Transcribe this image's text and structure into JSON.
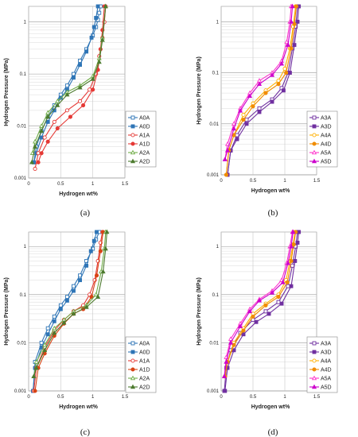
{
  "chart_data": [
    {
      "panel_label": "(a)",
      "type": "line",
      "xlabel": "Hydrogen wt%",
      "ylabel": "Hydrogen Pressure  (MPa)",
      "xlim": [
        0,
        1.5
      ],
      "ylim": [
        0.001,
        2
      ],
      "yscale": "log",
      "x_ticks": [
        "0",
        "0.5",
        "1",
        "1.5"
      ],
      "y_ticks": [
        "0.001",
        "0.01",
        "0.1",
        "1"
      ],
      "grid": true,
      "legend_position": "right-middle",
      "series": [
        {
          "name": "A0A",
          "color": "#2e75b6",
          "marker": "square-open",
          "x": [
            0.08,
            0.12,
            0.2,
            0.3,
            0.4,
            0.5,
            0.6,
            0.7,
            0.8,
            0.9,
            1.0,
            1.05,
            1.08,
            1.1,
            1.12
          ],
          "y": [
            0.002,
            0.004,
            0.008,
            0.015,
            0.025,
            0.04,
            0.06,
            0.1,
            0.18,
            0.3,
            0.55,
            0.8,
            1.1,
            1.5,
            2.0
          ]
        },
        {
          "name": "A0D",
          "color": "#2e75b6",
          "marker": "square-filled",
          "x": [
            0.08,
            0.12,
            0.2,
            0.3,
            0.4,
            0.5,
            0.6,
            0.7,
            0.8,
            0.9,
            0.98,
            1.02,
            1.05,
            1.08
          ],
          "y": [
            0.002,
            0.003,
            0.006,
            0.012,
            0.02,
            0.035,
            0.05,
            0.085,
            0.15,
            0.27,
            0.5,
            0.8,
            1.2,
            2.0
          ]
        },
        {
          "name": "A1A",
          "color": "#e53935",
          "marker": "circle-open",
          "x": [
            0.1,
            0.15,
            0.25,
            0.4,
            0.6,
            0.8,
            0.95,
            1.05,
            1.1,
            1.15,
            1.18,
            1.2
          ],
          "y": [
            0.0015,
            0.003,
            0.006,
            0.012,
            0.02,
            0.03,
            0.05,
            0.1,
            0.22,
            0.5,
            1.0,
            2.0
          ]
        },
        {
          "name": "A1D",
          "color": "#e53935",
          "marker": "circle-filled",
          "x": [
            0.15,
            0.2,
            0.3,
            0.45,
            0.65,
            0.85,
            1.0,
            1.08,
            1.12,
            1.15,
            1.18
          ],
          "y": [
            0.002,
            0.003,
            0.005,
            0.009,
            0.015,
            0.025,
            0.05,
            0.12,
            0.3,
            0.7,
            2.0
          ]
        },
        {
          "name": "A2A",
          "color": "#70ad47",
          "marker": "triangle-open",
          "x": [
            0.06,
            0.1,
            0.2,
            0.3,
            0.45,
            0.6,
            0.8,
            1.0,
            1.1,
            1.15,
            1.2
          ],
          "y": [
            0.003,
            0.005,
            0.01,
            0.018,
            0.03,
            0.045,
            0.06,
            0.09,
            0.2,
            0.5,
            2.0
          ]
        },
        {
          "name": "A2D",
          "color": "#4c7a2e",
          "marker": "triangle-filled",
          "x": [
            0.05,
            0.1,
            0.2,
            0.3,
            0.45,
            0.6,
            0.8,
            1.0,
            1.1,
            1.15,
            1.2
          ],
          "y": [
            0.002,
            0.004,
            0.008,
            0.015,
            0.025,
            0.04,
            0.055,
            0.08,
            0.17,
            0.45,
            2.0
          ]
        }
      ]
    },
    {
      "panel_label": "(b)",
      "type": "line",
      "xlabel": "Hydrogen wt%",
      "ylabel": "Hydrogen Pressure  (MPa)",
      "xlim": [
        0,
        1.5
      ],
      "ylim": [
        0.001,
        2
      ],
      "yscale": "log",
      "x_ticks": [
        "0",
        "0.5",
        "1",
        "1.5"
      ],
      "y_ticks": [
        "0.001",
        "0.01",
        "0.1",
        "1"
      ],
      "grid": true,
      "legend_position": "right-middle",
      "series": [
        {
          "name": "A3A",
          "color": "#7030a0",
          "marker": "square-open",
          "x": [
            0.1,
            0.15,
            0.25,
            0.4,
            0.6,
            0.8,
            0.95,
            1.05,
            1.12,
            1.17,
            1.2
          ],
          "y": [
            0.001,
            0.003,
            0.006,
            0.012,
            0.02,
            0.03,
            0.05,
            0.1,
            0.3,
            0.8,
            2.0
          ]
        },
        {
          "name": "A3D",
          "color": "#7030a0",
          "marker": "square-filled",
          "x": [
            0.1,
            0.15,
            0.25,
            0.4,
            0.6,
            0.8,
            0.98,
            1.08,
            1.15,
            1.2,
            1.22
          ],
          "y": [
            0.001,
            0.003,
            0.005,
            0.01,
            0.017,
            0.027,
            0.045,
            0.1,
            0.35,
            1.0,
            2.0
          ]
        },
        {
          "name": "A4A",
          "color": "#ffb000",
          "marker": "circle-open",
          "x": [
            0.08,
            0.12,
            0.2,
            0.35,
            0.5,
            0.7,
            0.9,
            1.0,
            1.08,
            1.13,
            1.17
          ],
          "y": [
            0.001,
            0.003,
            0.006,
            0.015,
            0.025,
            0.045,
            0.07,
            0.12,
            0.3,
            0.8,
            2.0
          ]
        },
        {
          "name": "A4D",
          "color": "#f08c00",
          "marker": "circle-filled",
          "x": [
            0.08,
            0.12,
            0.2,
            0.35,
            0.5,
            0.7,
            0.9,
            1.02,
            1.1,
            1.15,
            1.18
          ],
          "y": [
            0.001,
            0.003,
            0.006,
            0.012,
            0.022,
            0.04,
            0.06,
            0.1,
            0.3,
            0.9,
            2.0
          ]
        },
        {
          "name": "A5A",
          "color": "#ff33cc",
          "marker": "triangle-open",
          "x": [
            0.06,
            0.1,
            0.2,
            0.3,
            0.45,
            0.6,
            0.8,
            0.95,
            1.03,
            1.08,
            1.1
          ],
          "y": [
            0.002,
            0.004,
            0.01,
            0.02,
            0.04,
            0.07,
            0.1,
            0.17,
            0.4,
            1.0,
            2.0
          ]
        },
        {
          "name": "A5D",
          "color": "#cc00cc",
          "marker": "triangle-filled",
          "x": [
            0.06,
            0.1,
            0.2,
            0.3,
            0.45,
            0.6,
            0.8,
            0.95,
            1.05,
            1.1,
            1.12
          ],
          "y": [
            0.002,
            0.003,
            0.008,
            0.018,
            0.035,
            0.06,
            0.09,
            0.15,
            0.35,
            1.0,
            2.0
          ]
        }
      ]
    },
    {
      "panel_label": "(c)",
      "type": "line",
      "xlabel": "Hydrogen wt%",
      "ylabel": "Hydrogen Pressure  (MPa)",
      "xlim": [
        0,
        1.5
      ],
      "ylim": [
        0.001,
        2
      ],
      "yscale": "log",
      "x_ticks": [
        "0",
        "0.5",
        "1",
        "1.5"
      ],
      "y_ticks": [
        "0.001",
        "0.01",
        "0.1",
        "1"
      ],
      "grid": true,
      "legend_position": "right-middle",
      "series": [
        {
          "name": "A0A",
          "color": "#2e75b6",
          "marker": "square-open",
          "x": [
            0.07,
            0.1,
            0.2,
            0.3,
            0.4,
            0.5,
            0.6,
            0.7,
            0.8,
            0.9,
            1.0,
            1.05,
            1.1
          ],
          "y": [
            0.001,
            0.004,
            0.01,
            0.02,
            0.035,
            0.06,
            0.09,
            0.15,
            0.25,
            0.5,
            0.9,
            1.4,
            2.0
          ]
        },
        {
          "name": "A0D",
          "color": "#2e75b6",
          "marker": "square-filled",
          "x": [
            0.07,
            0.1,
            0.2,
            0.3,
            0.4,
            0.5,
            0.6,
            0.7,
            0.8,
            0.9,
            0.97,
            1.02,
            1.06
          ],
          "y": [
            0.001,
            0.003,
            0.008,
            0.015,
            0.028,
            0.05,
            0.075,
            0.12,
            0.2,
            0.4,
            0.8,
            1.3,
            2.0
          ]
        },
        {
          "name": "A1A",
          "color": "#e53935",
          "marker": "circle-open",
          "x": [
            0.08,
            0.12,
            0.25,
            0.4,
            0.55,
            0.7,
            0.85,
            0.95,
            1.03,
            1.08,
            1.12,
            1.15
          ],
          "y": [
            0.001,
            0.003,
            0.008,
            0.018,
            0.03,
            0.045,
            0.06,
            0.1,
            0.2,
            0.5,
            1.2,
            2.0
          ]
        },
        {
          "name": "A1D",
          "color": "#d84315",
          "marker": "circle-filled",
          "x": [
            0.1,
            0.15,
            0.25,
            0.4,
            0.55,
            0.7,
            0.85,
            0.98,
            1.06,
            1.12,
            1.16
          ],
          "y": [
            0.001,
            0.003,
            0.006,
            0.014,
            0.025,
            0.04,
            0.05,
            0.09,
            0.25,
            0.8,
            2.0
          ]
        },
        {
          "name": "A2A",
          "color": "#70ad47",
          "marker": "triangle-open",
          "x": [
            0.08,
            0.12,
            0.25,
            0.4,
            0.55,
            0.7,
            0.9,
            1.05,
            1.13,
            1.18,
            1.2
          ],
          "y": [
            0.002,
            0.004,
            0.009,
            0.02,
            0.03,
            0.045,
            0.06,
            0.1,
            0.3,
            0.9,
            2.0
          ]
        },
        {
          "name": "A2D",
          "color": "#4c7a2e",
          "marker": "triangle-filled",
          "x": [
            0.08,
            0.12,
            0.25,
            0.4,
            0.55,
            0.7,
            0.9,
            1.08,
            1.16,
            1.2,
            1.22
          ],
          "y": [
            0.002,
            0.003,
            0.007,
            0.016,
            0.026,
            0.04,
            0.055,
            0.09,
            0.3,
            0.9,
            2.0
          ]
        }
      ]
    },
    {
      "panel_label": "(d)",
      "type": "line",
      "xlabel": "Hydrogen wt%",
      "ylabel": "Hydrogen Pressure  (MPa)",
      "xlim": [
        0,
        1.5
      ],
      "ylim": [
        0.001,
        2
      ],
      "yscale": "log",
      "x_ticks": [
        "0",
        "0.5",
        "1",
        "1.5"
      ],
      "y_ticks": [
        "0.001",
        "0.01",
        "0.1",
        "1"
      ],
      "grid": true,
      "legend_position": "right-middle",
      "series": [
        {
          "name": "A3A",
          "color": "#7030a0",
          "marker": "square-open",
          "x": [
            0.05,
            0.08,
            0.15,
            0.3,
            0.5,
            0.7,
            0.9,
            1.05,
            1.12,
            1.17,
            1.2
          ],
          "y": [
            0.001,
            0.003,
            0.007,
            0.016,
            0.03,
            0.045,
            0.07,
            0.15,
            0.4,
            1.0,
            2.0
          ]
        },
        {
          "name": "A3D",
          "color": "#7030a0",
          "marker": "square-filled",
          "x": [
            0.06,
            0.1,
            0.2,
            0.35,
            0.55,
            0.75,
            0.95,
            1.1,
            1.16,
            1.2,
            1.22
          ],
          "y": [
            0.001,
            0.003,
            0.007,
            0.015,
            0.027,
            0.04,
            0.065,
            0.15,
            0.5,
            1.2,
            2.0
          ]
        },
        {
          "name": "A4A",
          "color": "#ffb000",
          "marker": "circle-open",
          "x": [
            0.06,
            0.1,
            0.2,
            0.35,
            0.5,
            0.7,
            0.9,
            1.02,
            1.08,
            1.13,
            1.16
          ],
          "y": [
            0.002,
            0.004,
            0.01,
            0.02,
            0.04,
            0.065,
            0.1,
            0.2,
            0.5,
            1.1,
            2.0
          ]
        },
        {
          "name": "A4D",
          "color": "#f08c00",
          "marker": "circle-filled",
          "x": [
            0.06,
            0.1,
            0.2,
            0.35,
            0.5,
            0.7,
            0.9,
            1.04,
            1.1,
            1.14,
            1.17
          ],
          "y": [
            0.002,
            0.004,
            0.009,
            0.018,
            0.035,
            0.06,
            0.09,
            0.18,
            0.5,
            1.1,
            2.0
          ]
        },
        {
          "name": "A5A",
          "color": "#ff33cc",
          "marker": "triangle-open",
          "x": [
            0.05,
            0.08,
            0.15,
            0.3,
            0.45,
            0.6,
            0.8,
            0.95,
            1.03,
            1.08,
            1.12
          ],
          "y": [
            0.002,
            0.005,
            0.012,
            0.025,
            0.05,
            0.08,
            0.12,
            0.2,
            0.45,
            1.0,
            2.0
          ]
        },
        {
          "name": "A5D",
          "color": "#cc00cc",
          "marker": "triangle-filled",
          "x": [
            0.05,
            0.08,
            0.15,
            0.3,
            0.45,
            0.6,
            0.8,
            0.97,
            1.05,
            1.1,
            1.13
          ],
          "y": [
            0.002,
            0.004,
            0.01,
            0.022,
            0.045,
            0.075,
            0.11,
            0.18,
            0.45,
            1.0,
            2.0
          ]
        }
      ]
    }
  ]
}
